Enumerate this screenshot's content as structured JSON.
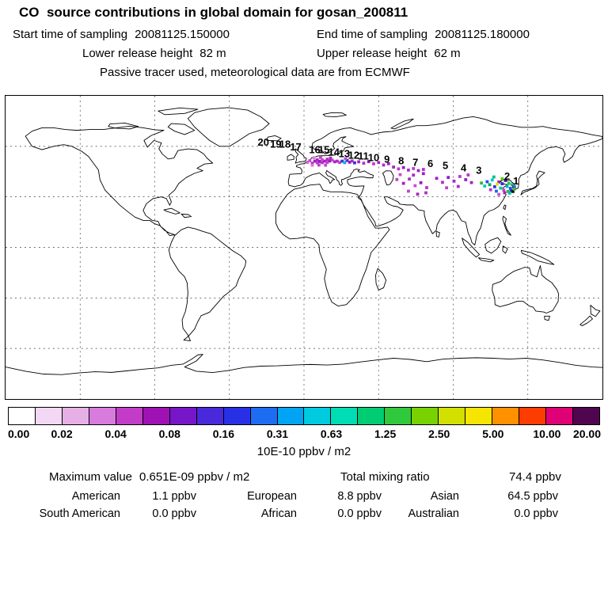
{
  "title": "CO  source contributions in global domain for gosan_200811",
  "header": {
    "start_label": "Start time of sampling",
    "start_value": "20081125.150000",
    "end_label": "End time of sampling",
    "end_value": "20081125.180000",
    "lower_label": "Lower release height",
    "lower_value": "82 m",
    "upper_label": "Upper release height",
    "upper_value": "62 m",
    "tracer_line": "Passive tracer used, meteorological data are from ECMWF"
  },
  "colorbar": {
    "ticks": [
      "0.00",
      "0.02",
      "0.04",
      "0.08",
      "0.16",
      "0.31",
      "0.63",
      "1.25",
      "2.50",
      "5.00",
      "10.00",
      "20.00"
    ],
    "unit": "10E-10 ppbv / m2",
    "segment_colors": [
      "#ffffff",
      "#f2d8f2",
      "#e6b0e6",
      "#d77cdc",
      "#c23cc8",
      "#9e12b4",
      "#7716c8",
      "#4a28dc",
      "#2830e6",
      "#1e6cf2",
      "#00a4f2",
      "#00cae0",
      "#00dcb4",
      "#00cc74",
      "#30c83c",
      "#78d200",
      "#d2e000",
      "#f5e500",
      "#ff9000",
      "#ff3c00",
      "#e00076",
      "#50064e"
    ]
  },
  "stats": {
    "max_label": "Maximum value",
    "max_value": "0.651E-09 ppbv / m2",
    "total_label": "Total mixing ratio",
    "total_value": "74.4 ppbv",
    "regions": [
      {
        "label": "American",
        "value": "1.1 ppbv"
      },
      {
        "label": "European",
        "value": "8.8 ppbv"
      },
      {
        "label": "Asian",
        "value": "64.5 ppbv"
      },
      {
        "label": "South American",
        "value": "0.0 ppbv"
      },
      {
        "label": "African",
        "value": "0.0 ppbv"
      },
      {
        "label": "Australian",
        "value": "0.0 ppbv"
      }
    ]
  },
  "map": {
    "trajectory_labels": [
      {
        "t": "20",
        "lon": -24.5,
        "lat": 60.3
      },
      {
        "t": "19",
        "lon": -17.0,
        "lat": 59.2
      },
      {
        "t": "18",
        "lon": -11.5,
        "lat": 59.2
      },
      {
        "t": "17",
        "lon": -5.0,
        "lat": 57.5
      },
      {
        "t": "16",
        "lon": 6.5,
        "lat": 56.0
      },
      {
        "t": "15",
        "lon": 12.0,
        "lat": 56.0
      },
      {
        "t": "14",
        "lon": 18.0,
        "lat": 54.6
      },
      {
        "t": "13",
        "lon": 24.3,
        "lat": 53.6
      },
      {
        "t": "12",
        "lon": 30.0,
        "lat": 52.7
      },
      {
        "t": "11",
        "lon": 35.8,
        "lat": 52.2
      },
      {
        "t": "10",
        "lon": 42.0,
        "lat": 51.3
      },
      {
        "t": "9",
        "lon": 50.0,
        "lat": 50.4
      },
      {
        "t": "8",
        "lon": 58.6,
        "lat": 49.4
      },
      {
        "t": "7",
        "lon": 67.2,
        "lat": 48.5
      },
      {
        "t": "6",
        "lon": 76.2,
        "lat": 47.6
      },
      {
        "t": "5",
        "lon": 85.3,
        "lat": 46.6
      },
      {
        "t": "4",
        "lon": 96.3,
        "lat": 45.2
      },
      {
        "t": "3",
        "lon": 105.5,
        "lat": 43.8
      },
      {
        "t": "2",
        "lon": 122.5,
        "lat": 40.2
      },
      {
        "t": "1",
        "lon": 127.8,
        "lat": 37.4
      }
    ]
  },
  "chart_data": {
    "type": "heatmap",
    "title": "CO source contributions in global domain for gosan_200811",
    "station": "gosan_200811",
    "sampling_start": "20081125.150000",
    "sampling_end": "20081125.180000",
    "lower_release_height_m": 82,
    "upper_release_height_m": 62,
    "tracer_note": "Passive tracer used, meteorological data are from ECMWF",
    "units": "10E-10 ppbv / m2",
    "colorbar_levels": [
      0.0,
      0.02,
      0.04,
      0.08,
      0.16,
      0.31,
      0.63,
      1.25,
      2.5,
      5.0,
      10.0,
      20.0
    ],
    "maximum_value": "0.651E-09 ppbv / m2",
    "total_mixing_ratio_ppbv": 74.4,
    "contributions_ppbv": {
      "American": 1.1,
      "European": 8.8,
      "Asian": 64.5,
      "South American": 0.0,
      "African": 0.0,
      "Australian": 0.0
    },
    "plume_points": [
      {
        "lon": 2,
        "lat": 50.5,
        "c": "#d462d4"
      },
      {
        "lon": 3.5,
        "lat": 51.5,
        "c": "#c649cc"
      },
      {
        "lon": 5,
        "lat": 50,
        "c": "#b52cc4"
      },
      {
        "lon": 6.5,
        "lat": 51.2,
        "c": "#9a1ecc"
      },
      {
        "lon": 8,
        "lat": 50.2,
        "c": "#c436c8"
      },
      {
        "lon": 8,
        "lat": 52,
        "c": "#ad28c8"
      },
      {
        "lon": 9.5,
        "lat": 51,
        "c": "#8f17c4"
      },
      {
        "lon": 11,
        "lat": 50.3,
        "c": "#bb2fc8"
      },
      {
        "lon": 11,
        "lat": 52,
        "c": "#c84ecd"
      },
      {
        "lon": 12.5,
        "lat": 51.2,
        "c": "#a61fc6"
      },
      {
        "lon": 14,
        "lat": 50.5,
        "c": "#c43bcb"
      },
      {
        "lon": 14,
        "lat": 52.3,
        "c": "#b42cc6"
      },
      {
        "lon": 15.5,
        "lat": 51.3,
        "c": "#9c1bc4"
      },
      {
        "lon": 17,
        "lat": 51.8,
        "c": "#c148ce"
      },
      {
        "lon": 18.5,
        "lat": 50.8,
        "c": "#ae25c6"
      },
      {
        "lon": 5,
        "lat": 48.8,
        "c": "#d573d5"
      },
      {
        "lon": 9,
        "lat": 48.9,
        "c": "#c23ac9"
      },
      {
        "lon": 13,
        "lat": 48.8,
        "c": "#cb44cd"
      },
      {
        "lon": 20,
        "lat": 51.2,
        "c": "#b02ac6"
      },
      {
        "lon": 21.5,
        "lat": 50.4,
        "c": "#c33fcb"
      },
      {
        "lon": 6,
        "lat": 53.2,
        "c": "#d97fd9"
      },
      {
        "lon": 10,
        "lat": 53.4,
        "c": "#c242ca"
      },
      {
        "lon": 16,
        "lat": 53,
        "c": "#ad27c7"
      },
      {
        "lon": 23,
        "lat": 51.2,
        "c": "#2e3ae0"
      },
      {
        "lon": 24.5,
        "lat": 50.3,
        "c": "#00b4dc"
      },
      {
        "lon": 26,
        "lat": 51.6,
        "c": "#3b2cdc"
      },
      {
        "lon": 27.5,
        "lat": 50.6,
        "c": "#8c1cc6"
      },
      {
        "lon": 29,
        "lat": 51.3,
        "c": "#b02cc8"
      },
      {
        "lon": 25,
        "lat": 52.6,
        "c": "#c64ccd"
      },
      {
        "lon": 30.5,
        "lat": 50.2,
        "c": "#4a28d8"
      },
      {
        "lon": 33,
        "lat": 50.8,
        "c": "#a524c6"
      },
      {
        "lon": 36,
        "lat": 50,
        "c": "#b733c9"
      },
      {
        "lon": 39,
        "lat": 50.9,
        "c": "#951ac2"
      },
      {
        "lon": 42,
        "lat": 49.6,
        "c": "#c23cca"
      },
      {
        "lon": 45,
        "lat": 50.4,
        "c": "#a827c6"
      },
      {
        "lon": 48,
        "lat": 48.9,
        "c": "#b12cc7"
      },
      {
        "lon": 51,
        "lat": 49.7,
        "c": "#9920c4"
      },
      {
        "lon": 54,
        "lat": 47.7,
        "c": "#ab28c6"
      },
      {
        "lon": 57,
        "lat": 46.6,
        "c": "#bb37c9"
      },
      {
        "lon": 60,
        "lat": 47.4,
        "c": "#9c1ec4"
      },
      {
        "lon": 63,
        "lat": 45.9,
        "c": "#ad2ac6"
      },
      {
        "lon": 66,
        "lat": 46.8,
        "c": "#bd3cca"
      },
      {
        "lon": 69,
        "lat": 45.6,
        "c": "#a122c5"
      },
      {
        "lon": 72,
        "lat": 46.3,
        "c": "#b432c8"
      },
      {
        "lon": 56,
        "lat": 40.3,
        "c": "#c340cb"
      },
      {
        "lon": 60,
        "lat": 38,
        "c": "#a61fc5"
      },
      {
        "lon": 63.5,
        "lat": 40.6,
        "c": "#b22ec7"
      },
      {
        "lon": 67,
        "lat": 36.6,
        "c": "#c94fcf"
      },
      {
        "lon": 70.5,
        "lat": 38.4,
        "c": "#9c1cc4"
      },
      {
        "lon": 74,
        "lat": 35.5,
        "c": "#b735c9"
      },
      {
        "lon": 63,
        "lat": 33.4,
        "c": "#c342cb"
      },
      {
        "lon": 68.5,
        "lat": 31.6,
        "c": "#a828c6"
      },
      {
        "lon": 73.5,
        "lat": 32.4,
        "c": "#b02bc7"
      },
      {
        "lon": 58,
        "lat": 43.2,
        "c": "#c74ccd"
      },
      {
        "lon": 66,
        "lat": 42.9,
        "c": "#aa28c6"
      },
      {
        "lon": 72,
        "lat": 43.8,
        "c": "#9a22c4"
      },
      {
        "lon": 80,
        "lat": 41,
        "c": "#a31ec5"
      },
      {
        "lon": 83.5,
        "lat": 38.6,
        "c": "#b330c8"
      },
      {
        "lon": 87,
        "lat": 41.5,
        "c": "#961ac2"
      },
      {
        "lon": 90.5,
        "lat": 39.3,
        "c": "#aa29c6"
      },
      {
        "lon": 94,
        "lat": 42.1,
        "c": "#bb3aca"
      },
      {
        "lon": 97.5,
        "lat": 40.2,
        "c": "#9220c3"
      },
      {
        "lon": 86,
        "lat": 35.4,
        "c": "#c440cb"
      },
      {
        "lon": 93,
        "lat": 36.2,
        "c": "#ab2ac6"
      },
      {
        "lon": 99,
        "lat": 43,
        "c": "#b434c8"
      },
      {
        "lon": 101,
        "lat": 38.5,
        "c": "#a524c5"
      },
      {
        "lon": 107,
        "lat": 38.2,
        "c": "#2fb833"
      },
      {
        "lon": 109,
        "lat": 36.4,
        "c": "#00c6c6"
      },
      {
        "lon": 110.5,
        "lat": 39,
        "c": "#2c46e6"
      },
      {
        "lon": 112,
        "lat": 37.2,
        "c": "#00ae52"
      },
      {
        "lon": 113.5,
        "lat": 40,
        "c": "#00c6de"
      },
      {
        "lon": 115,
        "lat": 36,
        "c": "#3532de"
      },
      {
        "lon": 112.5,
        "lat": 34.2,
        "c": "#bf32c8"
      },
      {
        "lon": 114.5,
        "lat": 41.8,
        "c": "#00c47a"
      },
      {
        "lon": 116,
        "lat": 33.4,
        "c": "#2762ee"
      },
      {
        "lon": 117.5,
        "lat": 38.8,
        "c": "#8c1ec8"
      },
      {
        "lon": 118.5,
        "lat": 35.2,
        "c": "#00c6a2"
      },
      {
        "lon": 119.5,
        "lat": 37.8,
        "c": "#2b32d2"
      },
      {
        "lon": 120.5,
        "lat": 34,
        "c": "#c33ecb"
      },
      {
        "lon": 121.5,
        "lat": 39.8,
        "c": "#1a1a84"
      },
      {
        "lon": 122.5,
        "lat": 36.2,
        "c": "#00b6da"
      },
      {
        "lon": 123.5,
        "lat": 38,
        "c": "#32be3e"
      },
      {
        "lon": 124.5,
        "lat": 35,
        "c": "#2646e6"
      },
      {
        "lon": 125.5,
        "lat": 37.2,
        "c": "#00c47e"
      },
      {
        "lon": 121,
        "lat": 32.4,
        "c": "#a31fc5"
      },
      {
        "lon": 117.5,
        "lat": 31.4,
        "c": "#c851d0"
      },
      {
        "lon": 123,
        "lat": 33.2,
        "c": "#2fb833"
      },
      {
        "lon": 125,
        "lat": 33.6,
        "c": "#2b32cc"
      },
      {
        "lon": 126.5,
        "lat": 35.8,
        "c": "#56064e"
      },
      {
        "lon": 119.5,
        "lat": 40.8,
        "c": "#64cc00"
      },
      {
        "lon": 116.5,
        "lat": 37.6,
        "c": "#eadc00"
      },
      {
        "lon": 126,
        "lat": 33.2,
        "c": "#111111"
      },
      {
        "lon": 127,
        "lat": 36,
        "c": "#2d6cf0"
      },
      {
        "lon": 124,
        "lat": 32.2,
        "c": "#00c0b0"
      },
      {
        "lon": 126.8,
        "lat": 34.6,
        "c": "#35bb35"
      }
    ]
  }
}
